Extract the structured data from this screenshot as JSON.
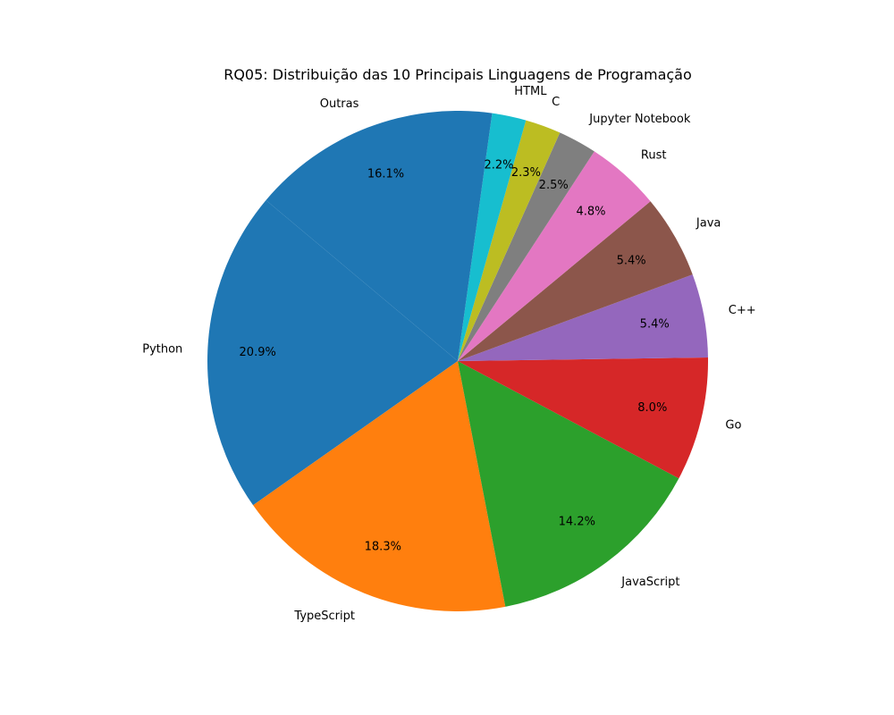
{
  "chart_data": {
    "type": "pie",
    "title": "RQ05: Distribuição das 10 Principais Linguagens de Programação",
    "categories": [
      "Python",
      "TypeScript",
      "JavaScript",
      "Go",
      "C++",
      "Java",
      "Rust",
      "Jupyter Notebook",
      "C",
      "HTML",
      "Outras"
    ],
    "values": [
      20.9,
      18.3,
      14.2,
      8.0,
      5.4,
      5.4,
      4.8,
      2.5,
      2.3,
      2.2,
      16.1
    ],
    "value_labels": [
      "20.9%",
      "18.3%",
      "14.2%",
      "8.0%",
      "5.4%",
      "5.4%",
      "4.8%",
      "2.5%",
      "2.3%",
      "2.2%",
      "16.1%"
    ],
    "colors": [
      "#1f77b4",
      "#ff7f0e",
      "#2ca02c",
      "#d62728",
      "#9467bd",
      "#8c564b",
      "#e377c2",
      "#7f7f7f",
      "#bcbd22",
      "#17becf",
      "#1f77b4"
    ],
    "start_angle_deg": 140,
    "direction": "counterclockwise",
    "legend": "none"
  }
}
